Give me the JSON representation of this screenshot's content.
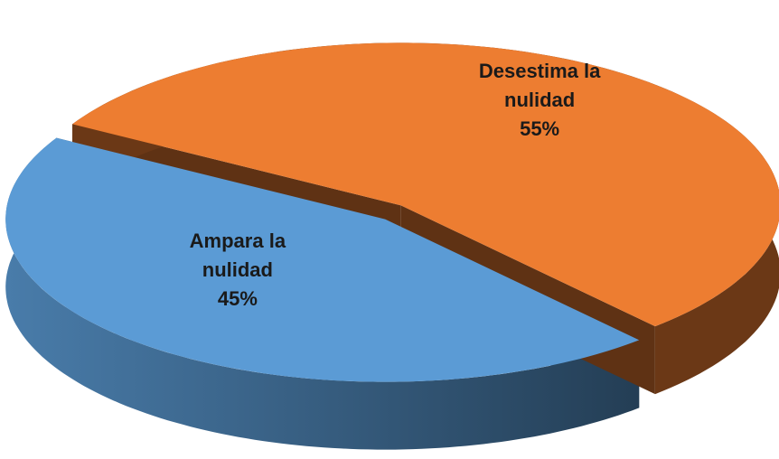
{
  "chart_data": {
    "type": "pie",
    "categories": [
      "Ampara la nulidad",
      "Desestima la nulidad"
    ],
    "values": [
      45,
      55
    ],
    "value_labels": [
      "45%",
      "55%"
    ],
    "colors": [
      "#5b9bd5",
      "#ed7d31"
    ]
  }
}
